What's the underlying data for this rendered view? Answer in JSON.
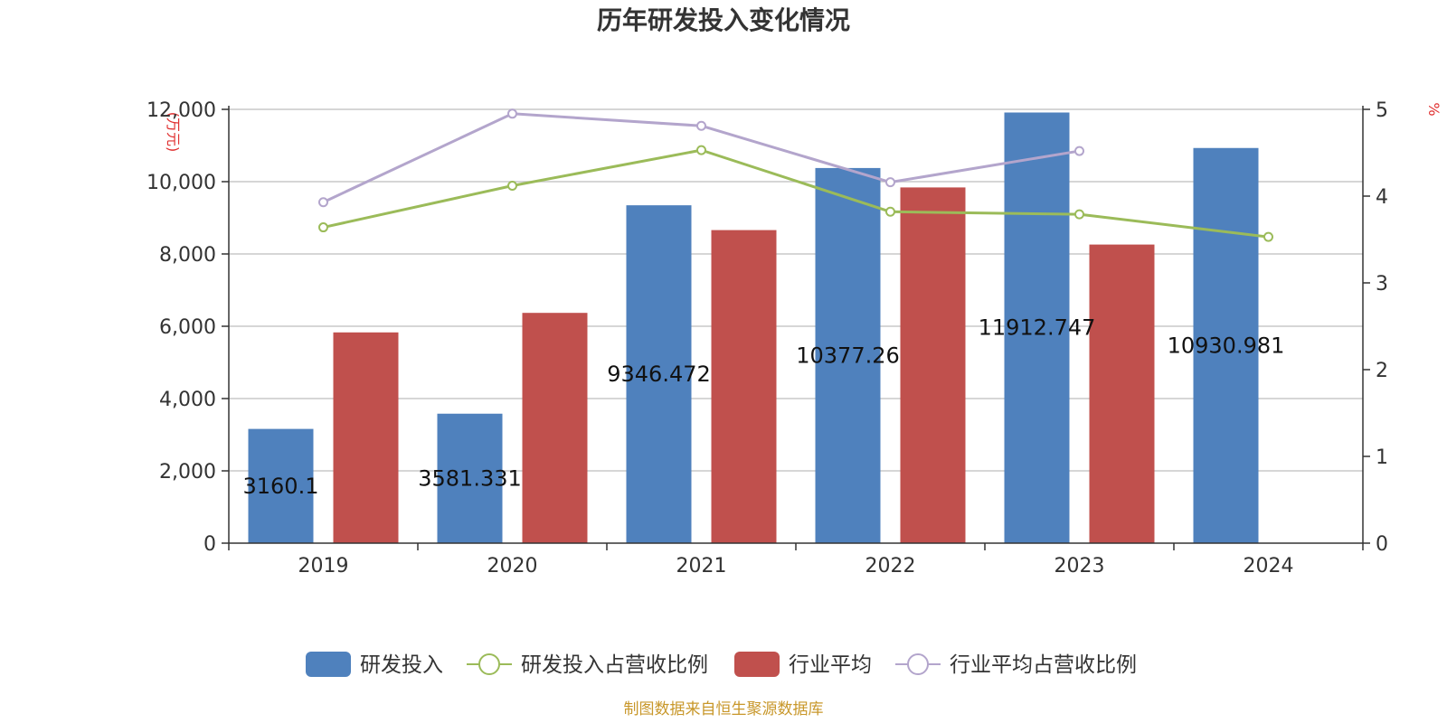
{
  "chart_data": {
    "type": "bar",
    "title": "历年研发投入变化情况",
    "categories": [
      "2019",
      "2020",
      "2021",
      "2022",
      "2023",
      "2024"
    ],
    "y_left": {
      "unit": "(万元)",
      "ylim": [
        0,
        12000
      ],
      "ticks": [
        0,
        2000,
        4000,
        6000,
        8000,
        10000,
        12000
      ],
      "tick_labels": [
        "0",
        "2,000",
        "4,000",
        "6,000",
        "8,000",
        "10,000",
        "12,000"
      ]
    },
    "y_right": {
      "unit": "%",
      "ylim": [
        0,
        5
      ],
      "ticks": [
        0,
        1,
        2,
        3,
        4,
        5
      ],
      "tick_labels": [
        "0",
        "1",
        "2",
        "3",
        "4",
        "5"
      ]
    },
    "grid": true,
    "legend_position": "bottom",
    "series": [
      {
        "name": "研发投入",
        "kind": "bar",
        "axis": "left",
        "color": "#4f81bd",
        "values": [
          3160.1,
          3581.331,
          9346.472,
          10377.26,
          11912.747,
          10930.981
        ],
        "labels": [
          "3160.1",
          "3581.331",
          "9346.472",
          "10377.26",
          "11912.747",
          "10930.981"
        ]
      },
      {
        "name": "研发投入占营收比例",
        "kind": "line",
        "axis": "right",
        "color": "#9bbb59",
        "values": [
          3.64,
          4.12,
          4.53,
          3.82,
          3.79,
          3.53
        ]
      },
      {
        "name": "行业平均",
        "kind": "bar",
        "axis": "left",
        "color": "#c0504d",
        "values": [
          5830,
          6370,
          8660,
          9840,
          8260,
          null
        ]
      },
      {
        "name": "行业平均占营收比例",
        "kind": "line",
        "axis": "right",
        "color": "#b3a5cc",
        "values": [
          3.93,
          4.95,
          4.81,
          4.16,
          4.52,
          null
        ]
      }
    ],
    "source": "制图数据来自恒生聚源数据库"
  }
}
